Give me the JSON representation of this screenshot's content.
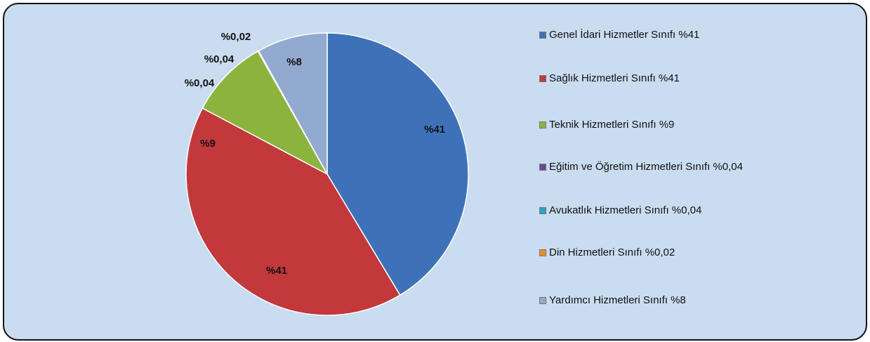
{
  "chart_data": {
    "type": "pie",
    "categories": [
      "Genel İdari Hizmetler Sınıfı %41",
      "Sağlık Hizmetleri Sınıfı %41",
      "Teknik Hizmetleri Sınıfı %9",
      "Eğitim ve Öğretim Hizmetleri Sınıfı %0,04",
      "Avukatlık Hizmetleri Sınıfı %0,04",
      "Din Hizmetleri Sınıfı %0,02",
      "Yardımcı Hizmetleri Sınıfı %8"
    ],
    "values": [
      41,
      41,
      9,
      0.04,
      0.04,
      0.02,
      8
    ],
    "value_labels": [
      "%41",
      "%41",
      "%9",
      "%0,04",
      "%0,04",
      "%0,02",
      "%8"
    ],
    "colors": [
      "#3d72b8",
      "#c2383b",
      "#8db33f",
      "#6e4993",
      "#2aa2c0",
      "#ee8a2a",
      "#93aad0"
    ]
  }
}
